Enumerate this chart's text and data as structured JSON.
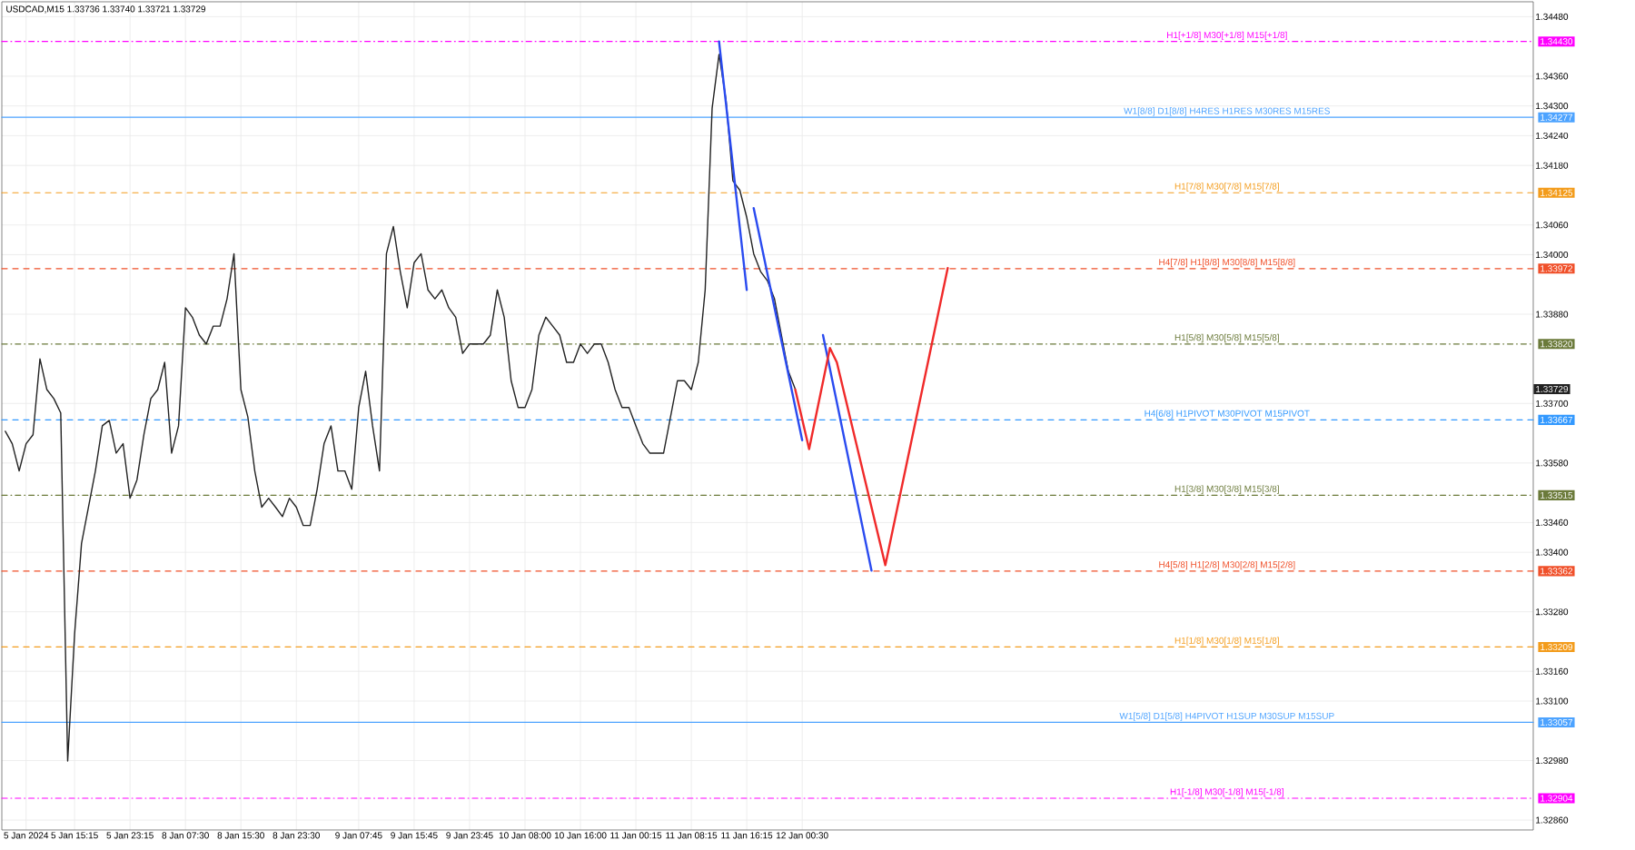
{
  "chart_data": {
    "type": "line",
    "title": "USDCAD,M15  1.33736 1.33740 1.33721 1.33729",
    "categories": [
      null,
      null,
      null,
      "5 Jan 2024",
      null,
      null,
      null,
      null,
      null,
      null,
      "5 Jan 15:15",
      null,
      null,
      null,
      null,
      null,
      null,
      null,
      "5 Jan 23:15",
      null,
      null,
      null,
      null,
      null,
      null,
      null,
      "8 Jan 07:30",
      null,
      null,
      null,
      null,
      null,
      null,
      null,
      "8 Jan 15:30",
      null,
      null,
      null,
      null,
      null,
      null,
      null,
      "8 Jan 23:30",
      null,
      null,
      null,
      null,
      null,
      null,
      null,
      null,
      "9 Jan 07:45",
      null,
      null,
      null,
      null,
      null,
      null,
      null,
      "9 Jan 15:45",
      null,
      null,
      null,
      null,
      null,
      null,
      null,
      "9 Jan 23:45",
      null,
      null,
      null,
      null,
      null,
      null,
      null,
      "10 Jan 08:00",
      null,
      null,
      null,
      null,
      null,
      null,
      null,
      "10 Jan 16:00",
      null,
      null,
      null,
      null,
      null,
      null,
      null,
      "11 Jan 00:15",
      null,
      null,
      null,
      null,
      null,
      null,
      null,
      "11 Jan 08:15",
      null,
      null,
      null,
      null,
      null,
      null,
      null,
      "11 Jan 16:15",
      null,
      null,
      null,
      null,
      null,
      null,
      null,
      "12 Jan 00:30",
      null,
      null,
      null,
      null,
      null,
      null,
      null,
      null,
      null,
      null,
      null,
      null,
      null,
      null,
      null,
      null,
      null,
      null,
      null,
      null,
      null,
      null,
      null,
      null,
      null,
      null,
      null,
      null,
      null,
      null,
      null,
      null,
      null,
      null,
      null,
      null,
      null,
      null,
      null,
      null,
      null,
      null,
      null,
      null,
      null,
      null,
      null,
      null,
      null,
      null,
      null,
      null,
      null,
      null,
      null,
      null,
      null,
      null,
      null,
      null,
      null,
      null,
      null,
      null,
      null,
      null,
      null,
      null,
      null,
      null,
      null,
      null,
      null,
      null,
      null,
      null,
      null,
      null,
      null,
      null,
      null,
      null,
      null,
      null,
      null,
      null,
      null,
      null,
      null,
      null,
      null,
      null,
      null,
      null,
      null,
      null,
      null,
      null,
      null,
      null,
      null,
      null,
      null,
      null,
      null
    ],
    "ylim": [
      1.3284,
      1.3451
    ],
    "yticks": [
      {
        "value": 1.3448,
        "label": "1.34480"
      },
      {
        "value": 1.3436,
        "label": "1.34360"
      },
      {
        "value": 1.343,
        "label": "1.34300"
      },
      {
        "value": 1.3424,
        "label": "1.34240"
      },
      {
        "value": 1.3418,
        "label": "1.34180"
      },
      {
        "value": 1.3406,
        "label": "1.34060"
      },
      {
        "value": 1.34,
        "label": "1.34000"
      },
      {
        "value": 1.3388,
        "label": "1.33880"
      },
      {
        "value": 1.33729,
        "label": "1.33729"
      },
      {
        "value": 1.337,
        "label": "1.33700"
      },
      {
        "value": 1.3358,
        "label": "1.33580"
      },
      {
        "value": 1.3346,
        "label": "1.33460"
      },
      {
        "value": 1.334,
        "label": "1.33400"
      },
      {
        "value": 1.3328,
        "label": "1.33280"
      },
      {
        "value": 1.3316,
        "label": "1.33160"
      },
      {
        "value": 1.331,
        "label": "1.33100"
      },
      {
        "value": 1.3298,
        "label": "1.32980"
      },
      {
        "value": 1.3286,
        "label": "1.32860"
      }
    ],
    "grid": true,
    "annotations": [
      "1.34430",
      "1.34277",
      "1.34125",
      "1.33972",
      "1.33820",
      "1.33667",
      "1.33515",
      "1.33362",
      "1.33209",
      "1.33057",
      "1.32904"
    ],
    "series": [
      {
        "color": "#222222",
        "values": [
          1.33644,
          1.33619,
          1.33564,
          1.33619,
          1.33637,
          1.3379,
          1.33728,
          1.3371,
          1.33681,
          1.32979,
          1.33235,
          1.33418,
          1.33491,
          1.33564,
          1.33655,
          1.33666,
          1.336,
          1.33619,
          1.33509,
          1.33546,
          1.33637,
          1.3371,
          1.33728,
          1.33783,
          1.336,
          1.33655,
          1.33893,
          1.33874,
          1.33838,
          1.3382,
          1.33856,
          1.33856,
          1.33911,
          1.34002,
          1.33728,
          1.33673,
          1.33564,
          1.33491,
          1.33509,
          1.33491,
          1.33472,
          1.33509,
          1.33491,
          1.33454,
          1.33454,
          1.33527,
          1.33619,
          1.33655,
          1.33564,
          1.33564,
          1.33527,
          1.33692,
          1.33765,
          1.33655,
          1.33564,
          1.34002,
          1.34057,
          1.33966,
          1.33893,
          1.33984,
          1.34002,
          1.33929,
          1.33911,
          1.33929,
          1.33893,
          1.33874,
          1.33801,
          1.3382,
          1.3382,
          1.3382,
          1.33838,
          1.33929,
          1.33874,
          1.33746,
          1.33692,
          1.33692,
          1.33728,
          1.33838,
          1.33874,
          1.33856,
          1.33838,
          1.33783,
          1.33783,
          1.3382,
          1.33801,
          1.3382,
          1.3382,
          1.33783,
          1.33728,
          1.33692,
          1.33692,
          1.33655,
          1.33619,
          1.336,
          1.336,
          1.336,
          1.33673,
          1.33746,
          1.33746,
          1.33728,
          1.33783,
          1.33929,
          1.34295,
          1.34404,
          1.34313,
          1.34149,
          1.3413,
          1.34075,
          1.34002,
          1.33966,
          1.33947,
          1.33911,
          1.33838,
          1.33765,
          1.33729,
          null,
          null,
          null,
          null,
          null,
          null,
          null,
          null,
          null,
          null,
          null,
          null,
          null,
          null,
          null,
          null,
          null,
          null,
          null,
          null,
          null,
          null,
          null,
          null,
          null,
          null,
          null,
          null,
          null,
          null,
          null,
          null,
          null,
          null,
          null,
          null,
          null,
          null,
          null,
          null,
          null,
          null,
          null,
          null,
          null,
          null,
          null,
          null,
          null,
          null,
          null,
          null,
          null,
          null,
          null,
          null,
          null,
          null,
          null,
          null,
          null,
          null,
          null,
          null,
          null,
          null,
          null,
          null,
          null,
          null,
          null,
          null,
          null,
          null,
          null,
          null,
          null,
          null,
          null,
          null,
          null,
          null,
          null,
          null,
          null,
          null,
          null,
          null,
          null,
          null,
          null,
          null,
          null,
          null,
          null,
          null,
          null,
          null,
          null,
          null,
          null,
          null,
          null,
          null,
          null,
          null
        ]
      },
      {
        "color": "#2a4bf0",
        "values": [
          null,
          null,
          null,
          null,
          null,
          null,
          null,
          null,
          null,
          null,
          null,
          null,
          null,
          null,
          null,
          null,
          null,
          null,
          null,
          null,
          null,
          null,
          null,
          null,
          null,
          null,
          null,
          null,
          null,
          null,
          null,
          null,
          null,
          null,
          null,
          null,
          null,
          null,
          null,
          null,
          null,
          null,
          null,
          null,
          null,
          null,
          null,
          null,
          null,
          null,
          null,
          null,
          null,
          null,
          null,
          null,
          null,
          null,
          null,
          null,
          null,
          null,
          null,
          null,
          null,
          null,
          null,
          null,
          null,
          null,
          null,
          null,
          null,
          null,
          null,
          null,
          null,
          null,
          null,
          null,
          null,
          null,
          null,
          null,
          null,
          null,
          null,
          null,
          null,
          null,
          null,
          null,
          null,
          null,
          null,
          null,
          null,
          null,
          null,
          null,
          null,
          null,
          null,
          1.3443,
          null,
          null,
          null,
          1.33929,
          null,
          null,
          null,
          null,
          null,
          null,
          null,
          null,
          null,
          null,
          null,
          null,
          null,
          null,
          null,
          null,
          null,
          null,
          null,
          null,
          null,
          null,
          null,
          null,
          null,
          null,
          null,
          null,
          null,
          null,
          null,
          null,
          null,
          null,
          null,
          null,
          null,
          null,
          null,
          null,
          null,
          null,
          null,
          null,
          null,
          null,
          null,
          null,
          null,
          null,
          null,
          null,
          null,
          null,
          null,
          null,
          null,
          null,
          null,
          null,
          null,
          null,
          null,
          null,
          null,
          null,
          null,
          null,
          null,
          null,
          null,
          null,
          null,
          null,
          null,
          null,
          null,
          null,
          null,
          null,
          null,
          null,
          null,
          null,
          null,
          null,
          null,
          null,
          null,
          null,
          null,
          null,
          null,
          null,
          null,
          null,
          null,
          null,
          null,
          null,
          null,
          null,
          null,
          null,
          null,
          null,
          null,
          null,
          null,
          null,
          null,
          null,
          null
        ]
      },
      {
        "color": "#2a4bf0",
        "values": [
          null,
          null,
          null,
          null,
          null,
          null,
          null,
          null,
          null,
          null,
          null,
          null,
          null,
          null,
          null,
          null,
          null,
          null,
          null,
          null,
          null,
          null,
          null,
          null,
          null,
          null,
          null,
          null,
          null,
          null,
          null,
          null,
          null,
          null,
          null,
          null,
          null,
          null,
          null,
          null,
          null,
          null,
          null,
          null,
          null,
          null,
          null,
          null,
          null,
          null,
          null,
          null,
          null,
          null,
          null,
          null,
          null,
          null,
          null,
          null,
          null,
          null,
          null,
          null,
          null,
          null,
          null,
          null,
          null,
          null,
          null,
          null,
          null,
          null,
          null,
          null,
          null,
          null,
          null,
          null,
          null,
          null,
          null,
          null,
          null,
          null,
          null,
          null,
          null,
          null,
          null,
          null,
          null,
          null,
          null,
          null,
          null,
          null,
          null,
          null,
          null,
          null,
          null,
          null,
          null,
          null,
          null,
          null,
          1.34094,
          null,
          null,
          null,
          null,
          null,
          null,
          1.33626,
          null,
          null,
          null,
          null,
          null,
          null,
          null,
          null,
          null,
          null,
          null,
          null,
          null,
          null,
          null,
          null,
          null,
          null,
          null,
          null,
          null,
          null,
          null,
          null,
          null,
          null,
          null,
          null,
          null,
          null,
          null,
          null,
          null,
          null,
          null,
          null,
          null,
          null,
          null,
          null,
          null,
          null,
          null,
          null,
          null,
          null,
          null,
          null,
          null,
          null,
          null,
          null,
          null,
          null,
          null,
          null,
          null,
          null,
          null,
          null,
          null,
          null,
          null,
          null,
          null,
          null,
          null,
          null,
          null,
          null,
          null,
          null,
          null,
          null,
          null,
          null,
          null,
          null,
          null,
          null,
          null,
          null,
          null,
          null,
          null,
          null,
          null,
          null,
          null,
          null,
          null,
          null,
          null,
          null,
          null,
          null,
          null,
          null,
          null,
          null,
          null,
          null,
          null,
          null,
          null
        ]
      },
      {
        "color": "#2a4bf0",
        "values": [
          null,
          null,
          null,
          null,
          null,
          null,
          null,
          null,
          null,
          null,
          null,
          null,
          null,
          null,
          null,
          null,
          null,
          null,
          null,
          null,
          null,
          null,
          null,
          null,
          null,
          null,
          null,
          null,
          null,
          null,
          null,
          null,
          null,
          null,
          null,
          null,
          null,
          null,
          null,
          null,
          null,
          null,
          null,
          null,
          null,
          null,
          null,
          null,
          null,
          null,
          null,
          null,
          null,
          null,
          null,
          null,
          null,
          null,
          null,
          null,
          null,
          null,
          null,
          null,
          null,
          null,
          null,
          null,
          null,
          null,
          null,
          null,
          null,
          null,
          null,
          null,
          null,
          null,
          null,
          null,
          null,
          null,
          null,
          null,
          null,
          null,
          null,
          null,
          null,
          null,
          null,
          null,
          null,
          null,
          null,
          null,
          null,
          null,
          null,
          null,
          null,
          null,
          null,
          null,
          null,
          null,
          null,
          null,
          null,
          null,
          null,
          null,
          null,
          null,
          null,
          null,
          null,
          null,
          1.33838,
          null,
          null,
          null,
          null,
          null,
          null,
          1.33363,
          null,
          null,
          null,
          null,
          null,
          null,
          null,
          null,
          null,
          null,
          null,
          null,
          null,
          null,
          null,
          null,
          null,
          null,
          null,
          null,
          null,
          null,
          null,
          null,
          null,
          null,
          null,
          null,
          null,
          null,
          null,
          null,
          null,
          null,
          null,
          null,
          null,
          null,
          null,
          null,
          null,
          null,
          null,
          null,
          null,
          null,
          null,
          null,
          null,
          null,
          null,
          null,
          null,
          null,
          null,
          null,
          null,
          null,
          null,
          null,
          null,
          null,
          null,
          null,
          null,
          null,
          null,
          null,
          null,
          null,
          null,
          null,
          null,
          null,
          null,
          null,
          null,
          null,
          null,
          null,
          null,
          null,
          null,
          null,
          null,
          null,
          null,
          null,
          null,
          null,
          null,
          null,
          null,
          null,
          null
        ]
      },
      {
        "color": "#f02a2a",
        "values": [
          null,
          null,
          null,
          null,
          null,
          null,
          null,
          null,
          null,
          null,
          null,
          null,
          null,
          null,
          null,
          null,
          null,
          null,
          null,
          null,
          null,
          null,
          null,
          null,
          null,
          null,
          null,
          null,
          null,
          null,
          null,
          null,
          null,
          null,
          null,
          null,
          null,
          null,
          null,
          null,
          null,
          null,
          null,
          null,
          null,
          null,
          null,
          null,
          null,
          null,
          null,
          null,
          null,
          null,
          null,
          null,
          null,
          null,
          null,
          null,
          null,
          null,
          null,
          null,
          null,
          null,
          null,
          null,
          null,
          null,
          null,
          null,
          null,
          null,
          null,
          null,
          null,
          null,
          null,
          null,
          null,
          null,
          null,
          null,
          null,
          null,
          null,
          null,
          null,
          null,
          null,
          null,
          null,
          null,
          null,
          null,
          null,
          null,
          null,
          null,
          null,
          null,
          null,
          null,
          null,
          null,
          null,
          null,
          null,
          null,
          null,
          null,
          null,
          null,
          1.33728,
          null,
          1.33608,
          null,
          null,
          1.33812,
          1.33783,
          null,
          null,
          null,
          null,
          null,
          null,
          1.33374,
          null,
          null,
          null,
          null,
          null,
          null,
          null,
          null,
          1.33973,
          null,
          null,
          null,
          null,
          null,
          null,
          null,
          null,
          null,
          null,
          null,
          null,
          null,
          null,
          null,
          null,
          null,
          null,
          null,
          null,
          null,
          null,
          null,
          null,
          null,
          null,
          null,
          null,
          null,
          null,
          null,
          null,
          null,
          null,
          null,
          null,
          null,
          null,
          null,
          null,
          null,
          null,
          null,
          null,
          null,
          null,
          null,
          null,
          null,
          null,
          null,
          null,
          null,
          null,
          null,
          null,
          null,
          null,
          null,
          null,
          null,
          null,
          null,
          null,
          null,
          null,
          null,
          null,
          null,
          null,
          null,
          null,
          null,
          null,
          null,
          null,
          null,
          null,
          null,
          null,
          null,
          null,
          null,
          null
        ]
      }
    ],
    "ref_lines": [
      {
        "axis": "y",
        "value": 1.3443,
        "label": "H1[+1/8] M30[+1/8] M15[+1/8]",
        "color": "#ff00ff",
        "line_style": "dotted"
      },
      {
        "axis": "y",
        "value": 1.34277,
        "label": "W1[8/8] D1[8/8] H4RES H1RES M30RES M15RES",
        "color": "#4da3ff",
        "line_style": "solid"
      },
      {
        "axis": "y",
        "value": 1.34125,
        "label": "H1[7/8] M30[7/8] M15[7/8]",
        "color": "#f39c1c",
        "line_style": "dashed"
      },
      {
        "axis": "y",
        "value": 1.33972,
        "label": "H4[7/8] H1[8/8] M30[8/8] M15[8/8]",
        "color": "#f0502a",
        "line_style": "dashed"
      },
      {
        "axis": "y",
        "value": 1.3382,
        "label": "H1[5/8] M30[5/8] M15[5/8]",
        "color": "#6b7a3a",
        "line_style": "dotted"
      },
      {
        "axis": "y",
        "value": 1.33667,
        "label": "H4[6/8] H1PIVOT M30PIVOT M15PIVOT",
        "color": "#3399ff",
        "line_style": "dashed"
      },
      {
        "axis": "y",
        "value": 1.33515,
        "label": "H1[3/8] M30[3/8] M15[3/8]",
        "color": "#6b7a3a",
        "line_style": "dotted"
      },
      {
        "axis": "y",
        "value": 1.33362,
        "label": "H4[5/8] H1[2/8] M30[2/8] M15[2/8]",
        "color": "#f0502a",
        "line_style": "dashed"
      },
      {
        "axis": "y",
        "value": 1.33209,
        "label": "H1[1/8] M30[1/8] M15[1/8]",
        "color": "#f39c1c",
        "line_style": "dashed"
      },
      {
        "axis": "y",
        "value": 1.33057,
        "label": "W1[5/8] D1[5/8] H4PIVOT H1SUP M30SUP M15SUP",
        "color": "#4da3ff",
        "line_style": "solid"
      },
      {
        "axis": "y",
        "value": 1.32904,
        "label": "H1[-1/8] M30[-1/8] M15[-1/8]",
        "color": "#ff00ff",
        "line_style": "dotted"
      }
    ]
  }
}
